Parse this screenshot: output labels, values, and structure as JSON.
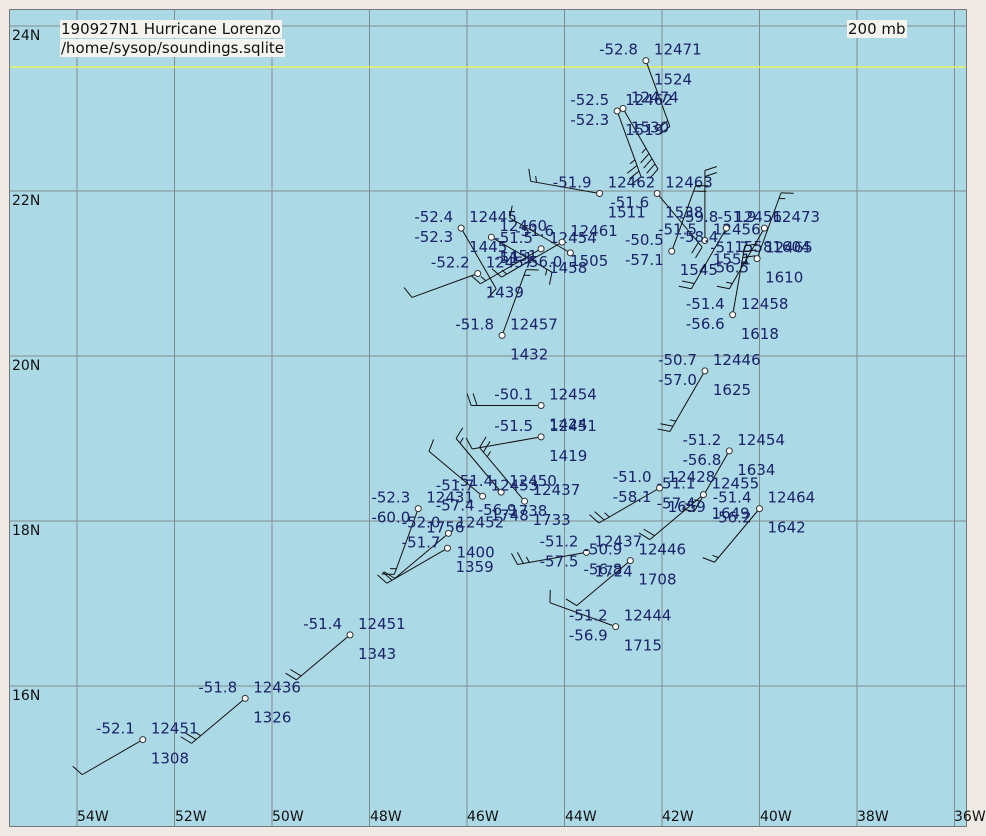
{
  "header": {
    "title": "190927N1 Hurricane Lorenzo",
    "source": "/home/sysop/soundings.sqlite",
    "level": "200 mb"
  },
  "axes": {
    "lat_labels": [
      "24N",
      "22N",
      "20N",
      "18N",
      "16N"
    ],
    "lon_labels": [
      "54W",
      "52W",
      "50W",
      "48W",
      "46W",
      "44W",
      "42W",
      "40W",
      "38W",
      "36W"
    ]
  },
  "colors": {
    "ocean": "#acd9e6",
    "grid": "#7f8b8f",
    "highlight_line": "#e3f25a",
    "label_text": "#1a2369",
    "station": "#333333"
  },
  "stations": [
    {
      "lat": 23.58,
      "lon": 42.33,
      "temp": "-52.8",
      "height": "12471",
      "time": "1524",
      "dew": "",
      "wind_dir": 160,
      "wind_kt": 20
    },
    {
      "lat": 22.97,
      "lon": 42.92,
      "temp": "-52.5",
      "height": "12462",
      "time": "1519",
      "dew": "-52.3",
      "wind_dir": 160,
      "wind_kt": 35
    },
    {
      "lat": 23.0,
      "lon": 42.8,
      "temp": "",
      "height": "12474",
      "time": "1530",
      "dew": "",
      "wind_dir": 150,
      "wind_kt": 45
    },
    {
      "lat": 21.97,
      "lon": 43.28,
      "temp": "-51.9",
      "height": "12462",
      "time": "1511",
      "dew": "",
      "wind_dir": 280,
      "wind_kt": 15
    },
    {
      "lat": 21.97,
      "lon": 42.1,
      "temp": "",
      "height": "12463",
      "time": "1538",
      "dew": "-51.6",
      "wind_dir": 140,
      "wind_kt": 20
    },
    {
      "lat": 21.55,
      "lon": 46.12,
      "temp": "-52.4",
      "height": "12445",
      "time": "1445",
      "dew": "-52.3",
      "wind_dir": 150,
      "wind_kt": 10
    },
    {
      "lat": 21.44,
      "lon": 45.5,
      "temp": "",
      "height": "12460",
      "time": "1451",
      "dew": "",
      "wind_dir": 120,
      "wind_kt": 15
    },
    {
      "lat": 21.3,
      "lon": 44.48,
      "temp": "-51.5",
      "height": "12454",
      "time": "1458",
      "dew": "-51.1",
      "wind_dir": 240,
      "wind_kt": 15
    },
    {
      "lat": 21.38,
      "lon": 44.05,
      "temp": "-51.6",
      "height": "12461",
      "time": "1505",
      "dew": "",
      "wind_dir": 240,
      "wind_kt": 15
    },
    {
      "lat": 21.25,
      "lon": 43.88,
      "temp": "",
      "height": "",
      "time": "",
      "dew": "-56.0",
      "wind_dir": 300,
      "wind_kt": 10
    },
    {
      "lat": 21.27,
      "lon": 41.8,
      "temp": "-50.5",
      "height": "",
      "time": "1545",
      "dew": "-57.1",
      "wind_dir": 20,
      "wind_kt": 20
    },
    {
      "lat": 21.4,
      "lon": 41.12,
      "temp": "-51.5",
      "height": "12456",
      "time": "1551",
      "dew": "",
      "wind_dir": 360,
      "wind_kt": 20
    },
    {
      "lat": 21.55,
      "lon": 40.68,
      "temp": "-59.8",
      "height": "12456",
      "time": "1558",
      "dew": "-58.4",
      "wind_dir": 210,
      "wind_kt": 20
    },
    {
      "lat": 21.55,
      "lon": 39.9,
      "temp": "-51.9",
      "height": "12473",
      "time": "1604",
      "dew": "",
      "wind_dir": 210,
      "wind_kt": 15
    },
    {
      "lat": 21.18,
      "lon": 40.05,
      "temp": "-51.7",
      "height": "12465",
      "time": "1610",
      "dew": "-56.5",
      "wind_dir": 20,
      "wind_kt": 15
    },
    {
      "lat": 20.5,
      "lon": 40.55,
      "temp": "-51.4",
      "height": "12458",
      "time": "1618",
      "dew": "-56.6",
      "wind_dir": 10,
      "wind_kt": 35
    },
    {
      "lat": 21.0,
      "lon": 45.78,
      "temp": "-52.2",
      "height": "12457",
      "time": "1439",
      "dew": "",
      "wind_dir": 250,
      "wind_kt": 10
    },
    {
      "lat": 20.25,
      "lon": 45.28,
      "temp": "-51.8",
      "height": "12457",
      "time": "1432",
      "dew": "",
      "wind_dir": 20,
      "wind_kt": 15
    },
    {
      "lat": 19.82,
      "lon": 41.12,
      "temp": "-50.7",
      "height": "12446",
      "time": "1625",
      "dew": "-57.0",
      "wind_dir": 210,
      "wind_kt": 25
    },
    {
      "lat": 19.4,
      "lon": 44.48,
      "temp": "-50.1",
      "height": "12454",
      "time": "1424",
      "dew": "",
      "wind_dir": 270,
      "wind_kt": 20
    },
    {
      "lat": 19.02,
      "lon": 44.48,
      "temp": "-51.5",
      "height": "12451",
      "time": "1419",
      "dew": "",
      "wind_dir": 260,
      "wind_kt": 10
    },
    {
      "lat": 18.85,
      "lon": 40.62,
      "temp": "-51.2",
      "height": "12454",
      "time": "1634",
      "dew": "-56.8",
      "wind_dir": 210,
      "wind_kt": 25
    },
    {
      "lat": 18.35,
      "lon": 45.3,
      "temp": "-51.4",
      "height": "12450",
      "time": "1738",
      "dew": "",
      "wind_dir": 320,
      "wind_kt": 15
    },
    {
      "lat": 18.24,
      "lon": 44.82,
      "temp": "",
      "height": "12437",
      "time": "1733",
      "dew": "-56.9",
      "wind_dir": 320,
      "wind_kt": 25
    },
    {
      "lat": 18.4,
      "lon": 42.05,
      "temp": "-51.0",
      "height": "12428",
      "time": "1659",
      "dew": "-58.1",
      "wind_dir": 240,
      "wind_kt": 25
    },
    {
      "lat": 18.32,
      "lon": 41.15,
      "temp": "-51.1",
      "height": "12455",
      "time": "1649",
      "dew": "-57.4",
      "wind_dir": 230,
      "wind_kt": 20
    },
    {
      "lat": 18.15,
      "lon": 40.0,
      "temp": "-51.4",
      "height": "12464",
      "time": "1642",
      "dew": "-56.2",
      "wind_dir": 220,
      "wind_kt": 15
    },
    {
      "lat": 18.3,
      "lon": 45.68,
      "temp": "-51.7",
      "height": "12453",
      "time": "1748",
      "dew": "-57.4",
      "wind_dir": 310,
      "wind_kt": 10
    },
    {
      "lat": 18.15,
      "lon": 47.0,
      "temp": "-52.3",
      "height": "12431",
      "time": "1756",
      "dew": "-60.0",
      "wind_dir": 200,
      "wind_kt": 15
    },
    {
      "lat": 17.85,
      "lon": 46.38,
      "temp": "-52.0",
      "height": "12452",
      "time": "1400",
      "dew": "-51.7",
      "wind_dir": 230,
      "wind_kt": 10
    },
    {
      "lat": 17.67,
      "lon": 46.4,
      "temp": "",
      "height": "",
      "time": "1359",
      "dew": "",
      "wind_dir": 240,
      "wind_kt": 20
    },
    {
      "lat": 17.62,
      "lon": 43.55,
      "temp": "-51.2",
      "height": "12437",
      "time": "1724",
      "dew": "-57.5",
      "wind_dir": 260,
      "wind_kt": 25
    },
    {
      "lat": 17.52,
      "lon": 42.65,
      "temp": "-50.9",
      "height": "12446",
      "time": "1708",
      "dew": "-56.8",
      "wind_dir": 230,
      "wind_kt": 10
    },
    {
      "lat": 16.72,
      "lon": 42.95,
      "temp": "-51.2",
      "height": "12444",
      "time": "1715",
      "dew": "-56.9",
      "wind_dir": 290,
      "wind_kt": 10
    },
    {
      "lat": 16.62,
      "lon": 48.4,
      "temp": "-51.4",
      "height": "12451",
      "time": "1343",
      "dew": "",
      "wind_dir": 230,
      "wind_kt": 20
    },
    {
      "lat": 15.85,
      "lon": 50.55,
      "temp": "-51.8",
      "height": "12436",
      "time": "1326",
      "dew": "",
      "wind_dir": 230,
      "wind_kt": 25
    },
    {
      "lat": 15.35,
      "lon": 52.65,
      "temp": "-52.1",
      "height": "12451",
      "time": "1308",
      "dew": "",
      "wind_dir": 240,
      "wind_kt": 10
    }
  ]
}
